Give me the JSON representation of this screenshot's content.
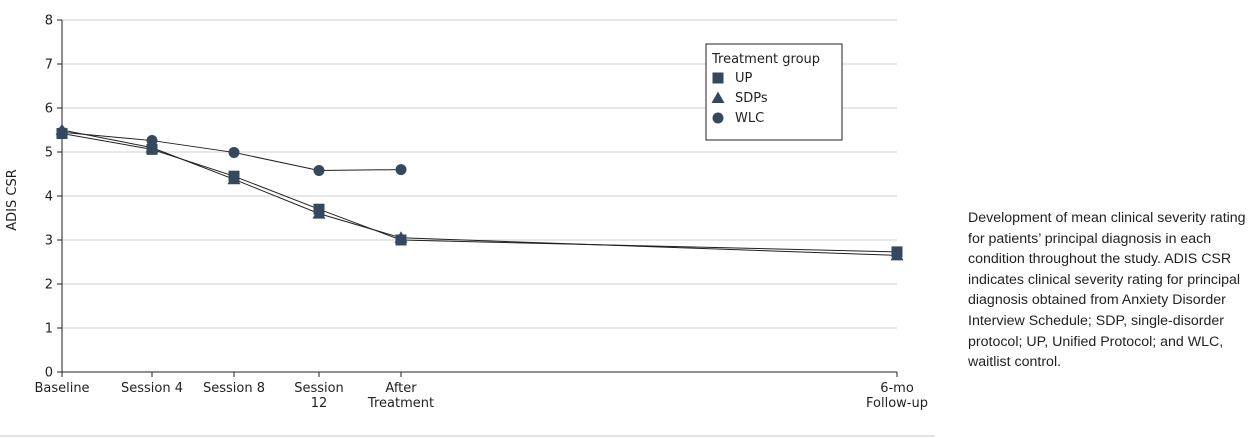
{
  "chart_data": {
    "type": "line",
    "ylabel": "ADIS CSR",
    "xlabel": "",
    "ylim": [
      0,
      8
    ],
    "yticks": [
      0,
      1,
      2,
      3,
      4,
      5,
      6,
      7,
      8
    ],
    "grid": true,
    "legend_position": "top-right",
    "legend_title": "Treatment group",
    "categories": [
      [
        "Baseline"
      ],
      [
        "Session 4"
      ],
      [
        "Session 8"
      ],
      [
        "Session",
        "12"
      ],
      [
        "After",
        "Treatment"
      ],
      [
        "6-mo",
        "Follow-up"
      ]
    ],
    "series": [
      {
        "name": "UP",
        "marker": "square",
        "color": "#34495e",
        "values": [
          5.42,
          5.06,
          4.45,
          3.7,
          3.0,
          2.73
        ]
      },
      {
        "name": "SDPs",
        "marker": "triangle",
        "color": "#34495e",
        "values": [
          5.5,
          5.1,
          4.38,
          3.6,
          3.05,
          2.65
        ]
      },
      {
        "name": "WLC",
        "marker": "circle",
        "color": "#34495e",
        "values": [
          5.45,
          5.26,
          4.99,
          4.58,
          4.6,
          null
        ]
      }
    ]
  },
  "caption": "Development of mean clinical severity rating for patients’ principal diagnosis in each condition throughout the study. ADIS CSR indicates clinical severity rating for principal diagnosis obtained from Anxiety Disorder Interview Schedule; SDP, single-disorder protocol; UP, Unified Protocol; and WLC, waitlist control."
}
